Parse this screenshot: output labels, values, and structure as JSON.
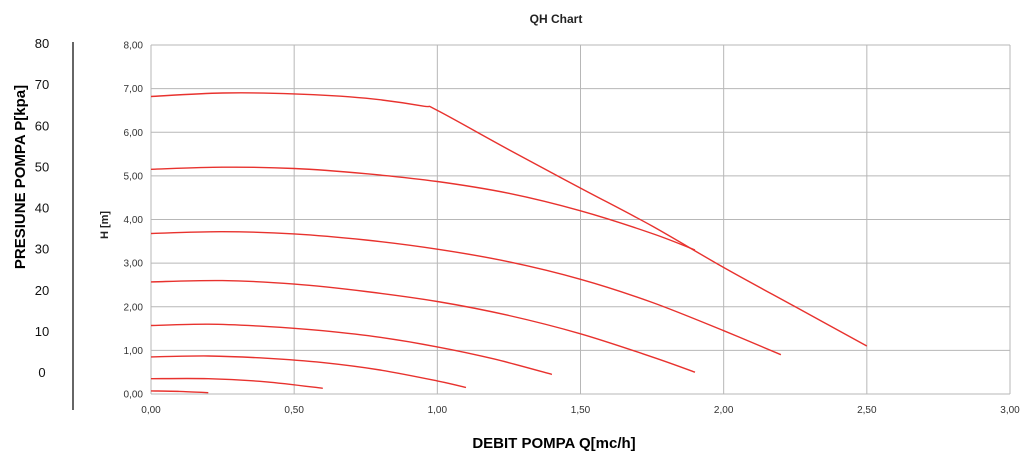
{
  "chart_data": {
    "type": "line",
    "title": "QH Chart",
    "xlabel": "DEBIT POMPA Q[mc/h]",
    "ylabel": "H [m]",
    "secondary_ylabel": "PRESIUNE POMPA P[kpa]",
    "xlim": [
      0,
      3
    ],
    "ylim": [
      0,
      8
    ],
    "x_ticks": [
      "0,00",
      "0,50",
      "1,00",
      "1,50",
      "2,00",
      "2,50",
      "3,00"
    ],
    "y_ticks": [
      "0,00",
      "1,00",
      "2,00",
      "3,00",
      "4,00",
      "5,00",
      "6,00",
      "7,00",
      "8,00"
    ],
    "secondary_y_ticks": [
      "80",
      "70",
      "60",
      "50",
      "40",
      "30",
      "20",
      "10",
      "0"
    ],
    "grid": true,
    "line_color": "#e8322e",
    "series": [
      {
        "x": [
          0,
          0.1,
          0.2
        ],
        "y": [
          0.07,
          0.06,
          0.03
        ]
      },
      {
        "x": [
          0,
          0.2,
          0.4,
          0.6
        ],
        "y": [
          0.35,
          0.35,
          0.28,
          0.13
        ]
      },
      {
        "x": [
          0,
          0.2,
          0.4,
          0.6,
          0.8,
          1.0,
          1.1
        ],
        "y": [
          0.85,
          0.87,
          0.82,
          0.72,
          0.55,
          0.3,
          0.15
        ]
      },
      {
        "x": [
          0,
          0.2,
          0.4,
          0.6,
          0.8,
          1.0,
          1.2,
          1.4
        ],
        "y": [
          1.57,
          1.6,
          1.55,
          1.45,
          1.3,
          1.08,
          0.8,
          0.45
        ]
      },
      {
        "x": [
          0,
          0.25,
          0.5,
          0.75,
          1.0,
          1.25,
          1.5,
          1.75,
          1.9
        ],
        "y": [
          2.57,
          2.6,
          2.52,
          2.35,
          2.12,
          1.8,
          1.38,
          0.85,
          0.5
        ]
      },
      {
        "x": [
          0,
          0.25,
          0.5,
          0.75,
          1.0,
          1.25,
          1.5,
          1.75,
          2.0,
          2.2
        ],
        "y": [
          3.68,
          3.72,
          3.67,
          3.53,
          3.32,
          3.03,
          2.63,
          2.1,
          1.45,
          0.9
        ]
      },
      {
        "x": [
          0,
          0.25,
          0.5,
          0.75,
          1.0,
          1.25,
          1.5,
          1.75,
          1.9
        ],
        "y": [
          5.15,
          5.2,
          5.17,
          5.05,
          4.87,
          4.6,
          4.2,
          3.68,
          3.3
        ]
      },
      {
        "x": [
          0,
          0.25,
          0.5,
          0.75,
          0.95,
          1.0,
          1.25,
          1.5,
          1.75,
          2.0,
          2.25,
          2.5
        ],
        "y": [
          6.82,
          6.9,
          6.88,
          6.78,
          6.6,
          6.5,
          5.6,
          4.72,
          3.85,
          2.9,
          2.0,
          1.1
        ]
      }
    ]
  }
}
